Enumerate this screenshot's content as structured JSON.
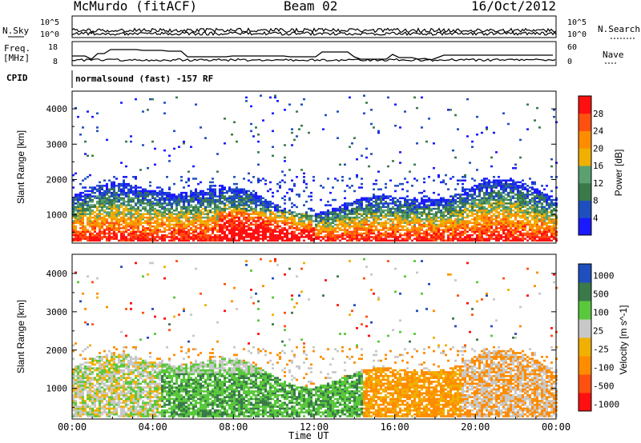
{
  "header": {
    "station": "McMurdo (fitACF)",
    "beam": "Beam 02",
    "date": "16/Oct/2012"
  },
  "summary_panels": {
    "noise": {
      "left_label": "N.Sky",
      "right_label": "N.Search",
      "left_ticks": [
        "10^5",
        "10^0"
      ],
      "right_ticks": [
        "10^5",
        "10^0"
      ]
    },
    "freq_nave": {
      "left_label_1": "Freq.",
      "left_label_2": "[MHz]",
      "right_label": "Nave",
      "left_ticks": [
        "18",
        "8"
      ],
      "right_ticks": [
        "60",
        "0"
      ]
    },
    "cpid": {
      "label": "CPID",
      "text": "normalsound (fast) -157 RF"
    }
  },
  "colors": {
    "power_scale": [
      "#1a1aff",
      "#1f4fbf",
      "#3a7a4a",
      "#5aa070",
      "#f0b000",
      "#ff8c00",
      "#ff5010",
      "#ff1010"
    ],
    "velocity_scale": [
      "#ff1010",
      "#ff5010",
      "#ff8c00",
      "#f0b000",
      "#c8c8c8",
      "#5ac83c",
      "#3a7a4a",
      "#1f4fbf"
    ],
    "grey": "#c8c8c8"
  },
  "chart_data": [
    {
      "type": "heatmap",
      "name": "power",
      "ylabel": "Slant Range [km]",
      "yticks": [
        "4000",
        "3000",
        "2000",
        "1000"
      ],
      "ylim": [
        200,
        4500
      ],
      "colorbar_label": "Power [dB]",
      "colorbar_ticks": [
        "28",
        "24",
        "20",
        "16",
        "12",
        "8",
        "4"
      ],
      "colorbar_range": [
        0,
        32
      ]
    },
    {
      "type": "heatmap",
      "name": "velocity",
      "ylabel": "Slant Range [km]",
      "yticks": [
        "4000",
        "3000",
        "2000",
        "1000"
      ],
      "ylim": [
        200,
        4500
      ],
      "colorbar_label": "Velocity [m s^-1]",
      "colorbar_ticks": [
        "1000",
        "500",
        "100",
        "25",
        "-25",
        "-100",
        "-500",
        "-1000"
      ]
    }
  ],
  "x_axis": {
    "label": "Time UT",
    "ticks": [
      "00:00",
      "04:00",
      "08:00",
      "12:00",
      "16:00",
      "20:00",
      "00:00"
    ]
  }
}
